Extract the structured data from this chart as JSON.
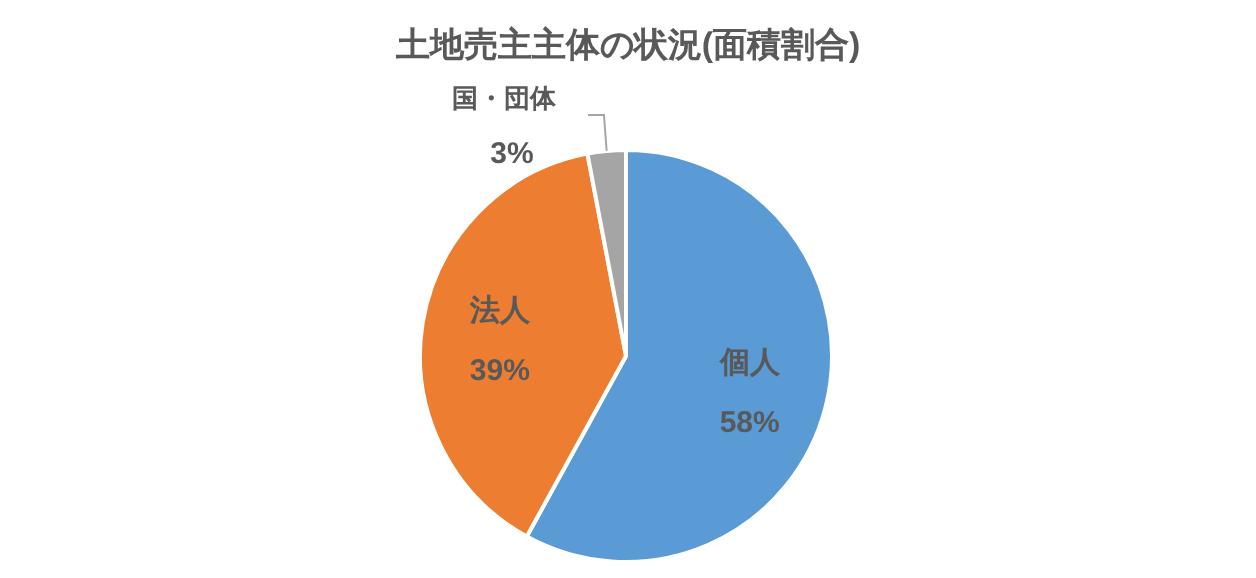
{
  "chart_data": {
    "type": "pie",
    "title": "土地売主主体の状況(面積割合)",
    "categories": [
      "個人",
      "法人",
      "国・団体"
    ],
    "values": [
      58,
      39,
      3
    ],
    "colors": [
      "#5b9bd5",
      "#ed7d31",
      "#a5a5a5"
    ],
    "value_labels": [
      "58%",
      "39%",
      "3%"
    ]
  }
}
